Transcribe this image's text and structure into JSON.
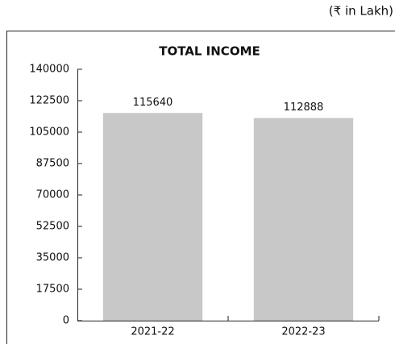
{
  "chart_data": {
    "type": "bar",
    "title": "TOTAL INCOME",
    "annotation": "(₹ in Lakh)",
    "categories": [
      "2021-22",
      "2022-23"
    ],
    "values": [
      115640,
      112888
    ],
    "color": "#c8c8c8",
    "ylim": [
      0,
      140000
    ],
    "yticks": [
      0,
      17500,
      35000,
      52500,
      70000,
      87500,
      105000,
      122500,
      140000
    ],
    "grid": false
  }
}
